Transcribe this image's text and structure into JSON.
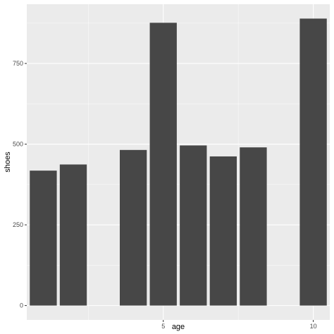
{
  "chart_data": {
    "type": "bar",
    "xlabel": "age",
    "ylabel": "shoes",
    "x": [
      1,
      2,
      4,
      5,
      6,
      7,
      8,
      10
    ],
    "values": [
      418,
      437,
      482,
      876,
      496,
      462,
      490,
      889
    ],
    "xlim": [
      0.45,
      10.55
    ],
    "ylim": [
      -44.5,
      933.5
    ],
    "x_ticks": [
      5,
      10
    ],
    "x_tick_labels": [
      "5",
      "10"
    ],
    "y_ticks": [
      0,
      250,
      500,
      750
    ],
    "y_tick_labels": [
      "0",
      "250",
      "500",
      "750"
    ],
    "grid": true,
    "legend": "none",
    "colors": {
      "panel_background": "#ebebeb",
      "grid_major": "#ffffff",
      "bar_fill": "#474747",
      "tick_text": "#4d4d4d"
    }
  }
}
